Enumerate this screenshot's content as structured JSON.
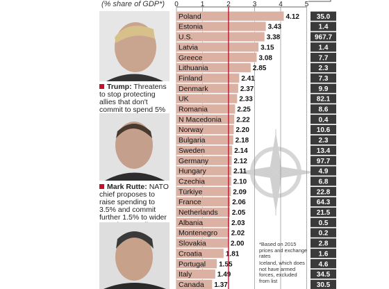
{
  "subtitle": "(% share of GDP*)",
  "chart_data": {
    "type": "bar",
    "title": "",
    "subtitle": "(% share of GDP*)",
    "xlim": [
      0,
      5
    ],
    "x_ticks": [
      "0",
      "1",
      "2",
      "3",
      "4",
      "5"
    ],
    "threshold": 2,
    "categories": [
      "Poland",
      "Estonia",
      "U.S.",
      "Latvia",
      "Greece",
      "Lithuania",
      "Finland",
      "Denmark",
      "UK",
      "Romania",
      "N Macedonia",
      "Norway",
      "Bulgaria",
      "Sweden",
      "Germany",
      "Hungary",
      "Czechia",
      "Türkiye",
      "France",
      "Netherlands",
      "Albania",
      "Montenegro",
      "Slovakia",
      "Croatia",
      "Portugal",
      "Italy",
      "Canada"
    ],
    "values": [
      4.12,
      3.43,
      3.38,
      3.15,
      3.08,
      2.85,
      2.41,
      2.37,
      2.33,
      2.25,
      2.22,
      2.2,
      2.18,
      2.14,
      2.12,
      2.11,
      2.1,
      2.09,
      2.06,
      2.05,
      2.03,
      2.02,
      2.0,
      1.81,
      1.55,
      1.49,
      1.37
    ],
    "value_labels": [
      "4.12",
      "3.43",
      "3.38",
      "3.15",
      "3.08",
      "2.85",
      "2.41",
      "2.37",
      "2.33",
      "2.25",
      "2.22",
      "2.20",
      "2.18",
      "2.14",
      "2.12",
      "2.11",
      "2.10",
      "2.09",
      "2.06",
      "2.05",
      "2.03",
      "2.02",
      "2.00",
      "1.81",
      "1.55",
      "1.49",
      "1.37"
    ],
    "right_column": [
      "35.0",
      "1.4",
      "967.7",
      "1.4",
      "7.7",
      "2.3",
      "7.3",
      "9.9",
      "82.1",
      "8.6",
      "0.4",
      "10.6",
      "2.3",
      "13.4",
      "97.7",
      "4.9",
      "6.8",
      "22.8",
      "64.3",
      "21.5",
      "0.5",
      "0.2",
      "2.8",
      "1.6",
      "4.6",
      "34.5",
      "30.5"
    ]
  },
  "captions": {
    "trump_name": "Trump:",
    "trump_text": "Threatens to stop protecting allies that don't commit to spend 5%",
    "rutte_name": "Mark Rutte:",
    "rutte_text": "NATO chief proposes to raise spending to 3.5% and commit further 1.5% to wider security spending"
  },
  "notes": {
    "note1": "*Based on 2015 prices and exchange rates",
    "note2": "Iceland, which does not have armed forces, excluded from list"
  },
  "colors": {
    "bar": "#dbb1a4",
    "threshold": "#c8102e",
    "right_column": "#3a3a3a",
    "accent": "#c8102e"
  }
}
